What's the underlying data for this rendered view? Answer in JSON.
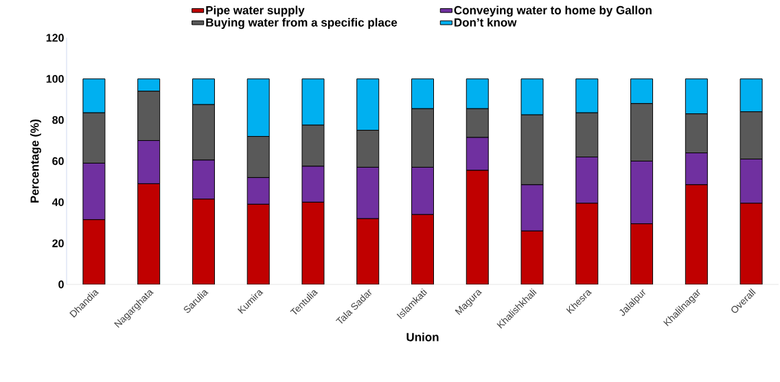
{
  "chart_data": {
    "type": "bar",
    "stacked": true,
    "xlabel": "Union",
    "ylabel": "Percentage (%)",
    "categories": [
      "Dhandia",
      "Nagarghata",
      "Sarulia",
      "Kumira",
      "Tentulia",
      "Tala Sadar",
      "Islamkati",
      "Magura",
      "Khalishkhali",
      "Khesra",
      "Jalalpur",
      "Khalilnagar",
      "Overall"
    ],
    "series": [
      {
        "name": "Pipe water supply",
        "color": "#c00000",
        "values": [
          31.5,
          49,
          41.5,
          39,
          40,
          32,
          34,
          55.5,
          26,
          39.5,
          29.5,
          48.5,
          39.5
        ]
      },
      {
        "name": "Conveying water to home by Gallon",
        "color": "#7030a0",
        "values": [
          27.5,
          21,
          19,
          13,
          17.5,
          25,
          23,
          16,
          22.5,
          22.5,
          30.5,
          15.5,
          21.5
        ]
      },
      {
        "name": "Buying water from a specific place",
        "color": "#595959",
        "values": [
          24.5,
          24,
          27,
          20,
          20,
          18,
          28.5,
          14,
          34,
          21.5,
          28,
          19,
          23
        ]
      },
      {
        "name": "Don’t know",
        "color": "#00b0f0",
        "values": [
          16.5,
          6,
          12.5,
          28,
          22.5,
          25,
          14.5,
          14.5,
          17.5,
          16.5,
          12,
          17,
          16
        ]
      }
    ],
    "ylim": [
      0,
      120
    ],
    "yticks": [
      0,
      20,
      40,
      60,
      80,
      100,
      120
    ],
    "legend": "top",
    "grid": false
  }
}
